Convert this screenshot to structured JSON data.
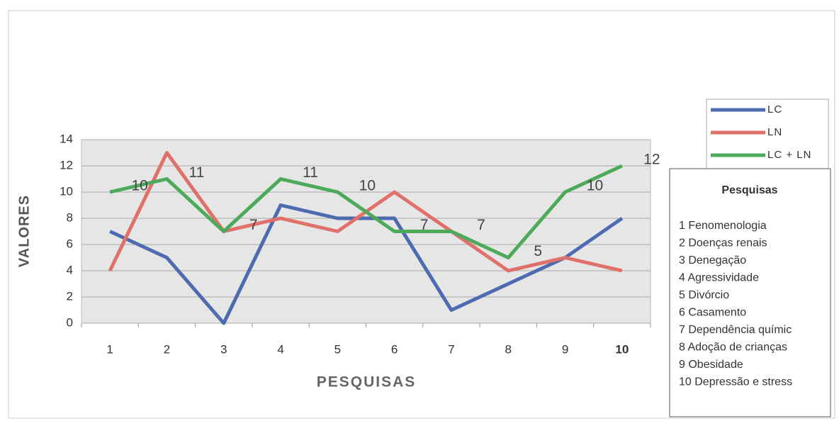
{
  "chart_data": {
    "type": "line",
    "x_label": "PESQUISAS",
    "y_label": "VALORES",
    "categories": [
      "1",
      "2",
      "3",
      "4",
      "5",
      "6",
      "7",
      "8",
      "9",
      "10"
    ],
    "series": [
      {
        "name": "LC",
        "color": "#4f6bb0",
        "values": [
          7,
          5,
          0,
          9,
          8,
          8,
          1,
          3,
          5,
          8
        ]
      },
      {
        "name": "LN",
        "color": "#e0706a",
        "values": [
          4,
          13,
          7,
          8,
          7,
          10,
          7,
          4,
          5,
          4
        ]
      },
      {
        "name": "LC + LN",
        "color": "#4caa5a",
        "values": [
          10,
          11,
          7,
          11,
          10,
          7,
          7,
          5,
          10,
          12
        ],
        "data_labels": true
      }
    ],
    "ylim": [
      0,
      14
    ],
    "yticks": [
      0,
      2,
      4,
      6,
      8,
      10,
      12,
      14
    ],
    "grid": true,
    "legend": "upper right",
    "info_box": {
      "title": "Pesquisas",
      "items": [
        "1 Fenomenologia",
        "2 Doenças renais",
        "3 Denegação",
        "4 Agressividade",
        "5 Divórcio",
        "6 Casamento",
        "7 Dependência químic",
        "8 Adoção de crianças",
        "9 Obesidade",
        "10 Depressão e stress"
      ]
    }
  }
}
